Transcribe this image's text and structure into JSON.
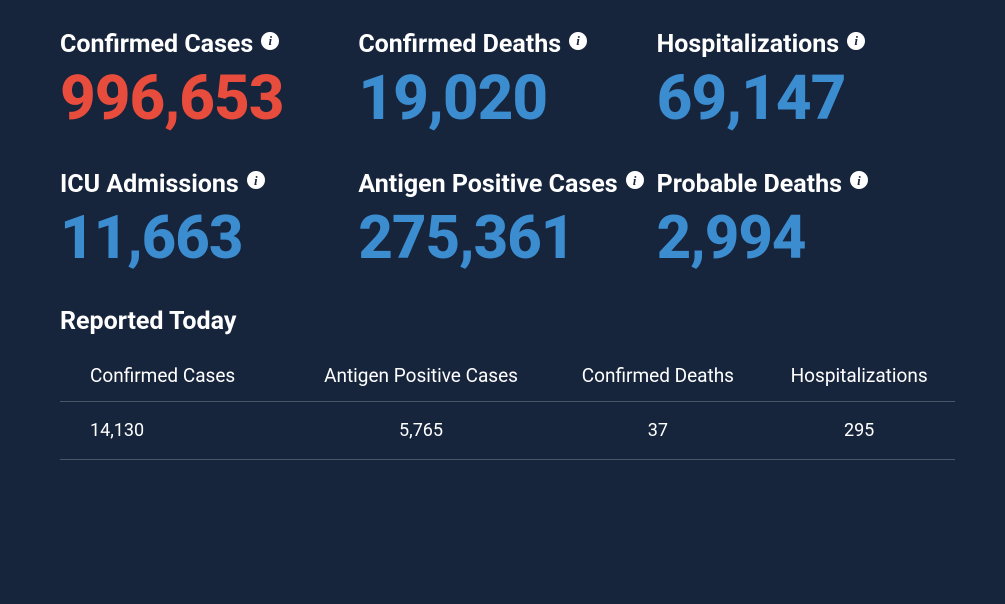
{
  "colors": {
    "background": "#16243c",
    "text": "#ffffff",
    "accent_red": "#e74c3c",
    "accent_blue": "#3c8cd0",
    "divider": "#4a5568",
    "info_icon_bg": "#ffffff",
    "info_icon_fg": "#16243c"
  },
  "typography": {
    "title_fontsize": 25,
    "title_weight": 700,
    "value_fontsize_row1": 62,
    "value_fontsize_row2": 60,
    "value_weight": 800,
    "table_header_fontsize": 19,
    "table_cell_fontsize": 18
  },
  "stats_row1": [
    {
      "label": "Confirmed Cases",
      "value": "996,653",
      "value_color": "#e74c3c"
    },
    {
      "label": "Confirmed Deaths",
      "value": "19,020",
      "value_color": "#3c8cd0"
    },
    {
      "label": "Hospitalizations",
      "value": "69,147",
      "value_color": "#3c8cd0"
    }
  ],
  "stats_row2": [
    {
      "label": "ICU Admissions",
      "value": "11,663",
      "value_color": "#3c8cd0"
    },
    {
      "label": "Antigen Positive Cases",
      "value": "275,361",
      "value_color": "#3c8cd0"
    },
    {
      "label": "Probable Deaths",
      "value": "2,994",
      "value_color": "#3c8cd0"
    }
  ],
  "reported_today": {
    "title": "Reported Today",
    "columns": [
      "Confirmed Cases",
      "Antigen Positive Cases",
      "Confirmed Deaths",
      "Hospitalizations"
    ],
    "rows": [
      [
        "14,130",
        "5,765",
        "37",
        "295"
      ]
    ]
  }
}
